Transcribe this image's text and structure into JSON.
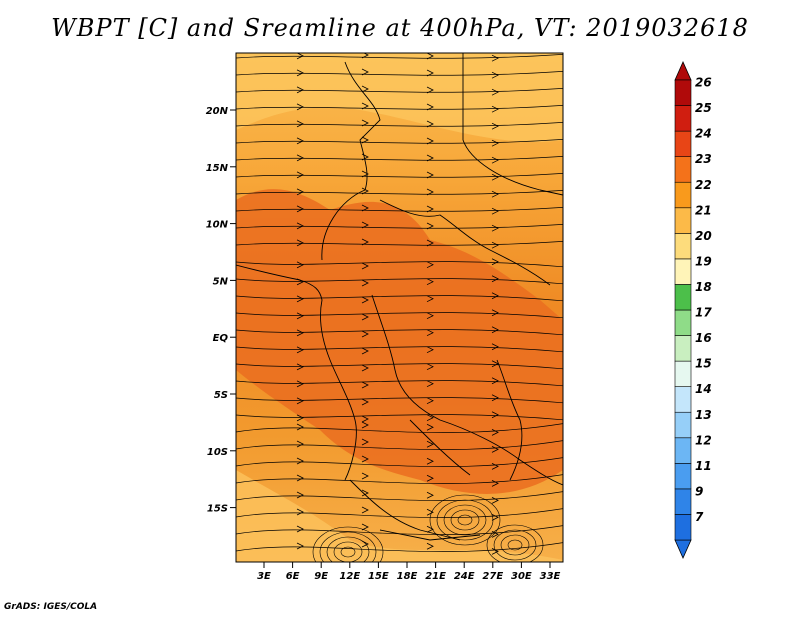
{
  "title": "WBPT [C] and Sreamline at 400hPa, VT: 2019032618",
  "footer": "GrADS: IGES/COLA",
  "map": {
    "lat_labels": [
      "20N",
      "15N",
      "10N",
      "5N",
      "EQ",
      "5S",
      "10S",
      "15S"
    ],
    "lon_labels": [
      "3E",
      "6E",
      "9E",
      "12E",
      "15E",
      "18E",
      "21E",
      "24E",
      "27E",
      "30E",
      "33E"
    ],
    "field": "wet-bulb potential temperature with streamlines",
    "dominant_range": "21-24"
  },
  "colorbar": {
    "levels": [
      "7",
      "9",
      "11",
      "12",
      "13",
      "14",
      "15",
      "16",
      "17",
      "18",
      "19",
      "20",
      "21",
      "22",
      "23",
      "24",
      "25",
      "26"
    ],
    "colors": [
      "#1e6fe0",
      "#2f84e8",
      "#4a9df0",
      "#6cb6f4",
      "#96cff8",
      "#c4e6fb",
      "#e6f8f0",
      "#c9efc0",
      "#8fdc88",
      "#4cbf4a",
      "#fff4b8",
      "#fddc7c",
      "#fcba48",
      "#f99a1c",
      "#f4721a",
      "#e84516",
      "#d01e10",
      "#b00a0a"
    ]
  }
}
